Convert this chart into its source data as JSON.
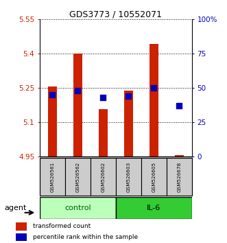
{
  "title": "GDS3773 / 10552071",
  "samples": [
    "GSM526561",
    "GSM526562",
    "GSM526602",
    "GSM526603",
    "GSM526605",
    "GSM526678"
  ],
  "transformed_counts": [
    5.258,
    5.402,
    5.158,
    5.238,
    5.443,
    4.958
  ],
  "percentile_ranks": [
    45,
    48,
    43,
    44,
    50,
    37
  ],
  "ylim_left": [
    4.95,
    5.55
  ],
  "ylim_right": [
    0,
    100
  ],
  "yticks_left": [
    4.95,
    5.1,
    5.25,
    5.4,
    5.55
  ],
  "yticks_right": [
    0,
    25,
    50,
    75,
    100
  ],
  "ytick_labels_left": [
    "4.95",
    "5.1",
    "5.25",
    "5.4",
    "5.55"
  ],
  "ytick_labels_right": [
    "0",
    "25",
    "50",
    "75",
    "100%"
  ],
  "bar_color": "#cc2200",
  "dot_color": "#0000bb",
  "bar_width": 0.35,
  "dot_size": 28,
  "bar_bottom": 4.95,
  "control_color": "#bbffbb",
  "il6_color": "#33cc33",
  "group_label_color_ctrl": "#006600",
  "group_label_color_il6": "#000000",
  "legend_bar_label": "transformed count",
  "legend_dot_label": "percentile rank within the sample",
  "grid_color": "#000000",
  "control_group_label": "control",
  "il6_group_label": "IL-6",
  "sample_box_color": "#cccccc"
}
